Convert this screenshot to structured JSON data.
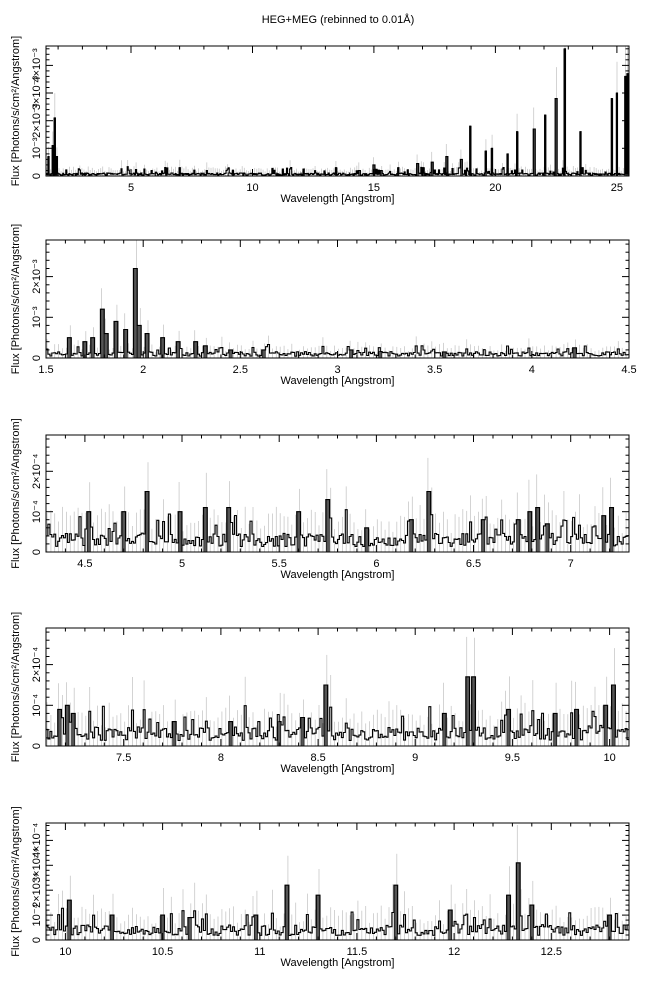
{
  "figure": {
    "title": "HEG+MEG (rebinned to 0.01Å)"
  },
  "chart_data": [
    {
      "type": "line",
      "xlabel": "Wavelength [Angstrom]",
      "ylabel": "Flux [Photons/s/cm²/Angstrom]",
      "xlim": [
        1.5,
        25.5
      ],
      "ylim": [
        0,
        0.0047
      ],
      "xticks": [
        5,
        10,
        15,
        20,
        25
      ],
      "xtick_labels": [
        "5",
        "10",
        "15",
        "20",
        "25"
      ],
      "yticks": [
        0,
        0.001,
        0.002,
        0.003,
        0.004
      ],
      "ytick_labels": [
        "0",
        "10⁻³",
        "2×10⁻³",
        "3×10⁻³",
        "4×10⁻³"
      ],
      "baseline": 7e-05,
      "noise": 0.00015,
      "lines": [
        [
          1.6,
          0.0007
        ],
        [
          1.78,
          0.0011
        ],
        [
          1.86,
          0.0021
        ],
        [
          1.95,
          0.0007
        ],
        [
          3.1,
          0.0001
        ],
        [
          7.0,
          0.0003
        ],
        [
          9.2,
          0.0002
        ],
        [
          12.1,
          0.00025
        ],
        [
          13.45,
          0.0003
        ],
        [
          14.4,
          0.0002
        ],
        [
          15.0,
          0.0004
        ],
        [
          15.3,
          0.0002
        ],
        [
          16.0,
          0.0003
        ],
        [
          16.8,
          0.00045
        ],
        [
          17.05,
          0.0003
        ],
        [
          17.4,
          0.0005
        ],
        [
          18.0,
          0.0007
        ],
        [
          18.6,
          0.0006
        ],
        [
          18.97,
          0.0018
        ],
        [
          19.6,
          0.0009
        ],
        [
          19.85,
          0.001
        ],
        [
          20.5,
          0.0008
        ],
        [
          20.9,
          0.0016
        ],
        [
          21.6,
          0.0017
        ],
        [
          22.05,
          0.0022
        ],
        [
          22.5,
          0.0028
        ],
        [
          22.85,
          0.0046
        ],
        [
          23.5,
          0.0016
        ],
        [
          24.8,
          0.0028
        ],
        [
          25.0,
          0.003
        ],
        [
          25.35,
          0.0036
        ],
        [
          25.45,
          0.0037
        ]
      ]
    },
    {
      "type": "line",
      "xlabel": "Wavelength [Angstrom]",
      "ylabel": "Flux [Photons/s/cm²/Angstrom]",
      "xlim": [
        1.5,
        4.5
      ],
      "ylim": [
        0,
        0.0029
      ],
      "xticks": [
        1.5,
        2,
        2.5,
        3,
        3.5,
        4,
        4.5
      ],
      "xtick_labels": [
        "1.5",
        "2",
        "2.5",
        "3",
        "3.5",
        "4",
        "4.5"
      ],
      "yticks": [
        0,
        0.001,
        0.002
      ],
      "ytick_labels": [
        "0",
        "10⁻³",
        "2×10⁻³"
      ],
      "baseline": 0.0001,
      "noise": 0.00012,
      "lines": [
        [
          1.62,
          0.0005
        ],
        [
          1.7,
          0.0004
        ],
        [
          1.74,
          0.0005
        ],
        [
          1.79,
          0.0012
        ],
        [
          1.81,
          0.0006
        ],
        [
          1.86,
          0.0009
        ],
        [
          1.91,
          0.0007
        ],
        [
          1.96,
          0.0022
        ],
        [
          1.98,
          0.0008
        ],
        [
          2.02,
          0.0006
        ],
        [
          2.1,
          0.0005
        ],
        [
          2.18,
          0.0004
        ],
        [
          2.27,
          0.0004
        ],
        [
          2.32,
          0.0003
        ],
        [
          2.45,
          0.0002
        ],
        [
          2.62,
          0.0002
        ],
        [
          3.07,
          0.0002
        ],
        [
          3.22,
          0.00016
        ],
        [
          3.55,
          0.00015
        ],
        [
          4.22,
          0.00025
        ]
      ]
    },
    {
      "type": "line",
      "xlabel": "Wavelength [Angstrom]",
      "ylabel": "Flux [Photons/s/cm²/Angstrom]",
      "xlim": [
        4.3,
        7.3
      ],
      "ylim": [
        0,
        0.00029
      ],
      "xticks": [
        4.5,
        5,
        5.5,
        6,
        6.5,
        7
      ],
      "xtick_labels": [
        "4.5",
        "5",
        "5.5",
        "6",
        "6.5",
        "7"
      ],
      "yticks": [
        0,
        0.0001,
        0.0002
      ],
      "ytick_labels": [
        "0",
        "10⁻⁴",
        "2×10⁻⁴"
      ],
      "baseline": 3e-05,
      "noise": 4e-05,
      "lines": [
        [
          4.52,
          0.0001
        ],
        [
          4.7,
          0.0001
        ],
        [
          4.82,
          0.00015
        ],
        [
          4.99,
          0.0001
        ],
        [
          5.12,
          0.00011
        ],
        [
          5.24,
          0.00011
        ],
        [
          5.6,
          0.0001
        ],
        [
          5.75,
          0.00013
        ],
        [
          5.95,
          6e-05
        ],
        [
          6.18,
          8e-05
        ],
        [
          6.27,
          0.00015
        ],
        [
          6.55,
          8e-05
        ],
        [
          6.73,
          8e-05
        ],
        [
          6.79,
          0.0001
        ],
        [
          6.83,
          0.00011
        ],
        [
          6.88,
          7e-05
        ],
        [
          7.17,
          9e-05
        ],
        [
          7.21,
          0.00011
        ]
      ]
    },
    {
      "type": "line",
      "xlabel": "Wavelength [Angstrom]",
      "ylabel": "Flux [Photons/s/cm²/Angstrom]",
      "xlim": [
        7.1,
        10.1
      ],
      "ylim": [
        0,
        0.00029
      ],
      "xticks": [
        7.5,
        8,
        8.5,
        9,
        9.5,
        10
      ],
      "xtick_labels": [
        "7.5",
        "8",
        "8.5",
        "9",
        "9.5",
        "10"
      ],
      "yticks": [
        0,
        0.0001,
        0.0002
      ],
      "ytick_labels": [
        "0",
        "10⁻⁴",
        "2×10⁻⁴"
      ],
      "baseline": 3e-05,
      "noise": 3.5e-05,
      "lines": [
        [
          7.17,
          9e-05
        ],
        [
          7.21,
          0.0001
        ],
        [
          7.24,
          8e-05
        ],
        [
          7.76,
          6e-05
        ],
        [
          8.05,
          6e-05
        ],
        [
          8.3,
          6e-05
        ],
        [
          8.42,
          7e-05
        ],
        [
          8.54,
          0.00015
        ],
        [
          9.15,
          8e-05
        ],
        [
          9.27,
          0.00017
        ],
        [
          9.3,
          0.00017
        ],
        [
          9.48,
          9e-05
        ],
        [
          9.72,
          8e-05
        ],
        [
          9.83,
          9e-05
        ],
        [
          9.98,
          0.0001
        ],
        [
          10.02,
          0.00015
        ]
      ]
    },
    {
      "type": "line",
      "xlabel": "Wavelength [Angstrom]",
      "ylabel": "Flux [Photons/s/cm²/Angstrom]",
      "xlim": [
        9.9,
        12.9
      ],
      "ylim": [
        0,
        0.00047
      ],
      "xticks": [
        10,
        10.5,
        11,
        11.5,
        12,
        12.5
      ],
      "xtick_labels": [
        "10",
        "10.5",
        "11",
        "11.5",
        "12",
        "12.5"
      ],
      "yticks": [
        0,
        0.0001,
        0.0002,
        0.0003,
        0.0004
      ],
      "ytick_labels": [
        "0",
        "10⁻⁴",
        "2×10⁻⁴",
        "3×10⁻⁴",
        "4×10⁻⁴"
      ],
      "baseline": 4e-05,
      "noise": 5e-05,
      "lines": [
        [
          10.02,
          0.00016
        ],
        [
          10.24,
          0.0001
        ],
        [
          10.5,
          0.0001
        ],
        [
          10.64,
          9e-05
        ],
        [
          10.98,
          0.0001
        ],
        [
          11.14,
          0.00022
        ],
        [
          11.3,
          0.00018
        ],
        [
          11.7,
          0.00022
        ],
        [
          11.98,
          0.00012
        ],
        [
          12.28,
          0.00018
        ],
        [
          12.33,
          0.00031
        ],
        [
          12.4,
          0.00014
        ],
        [
          12.8,
          0.0001
        ]
      ]
    }
  ]
}
